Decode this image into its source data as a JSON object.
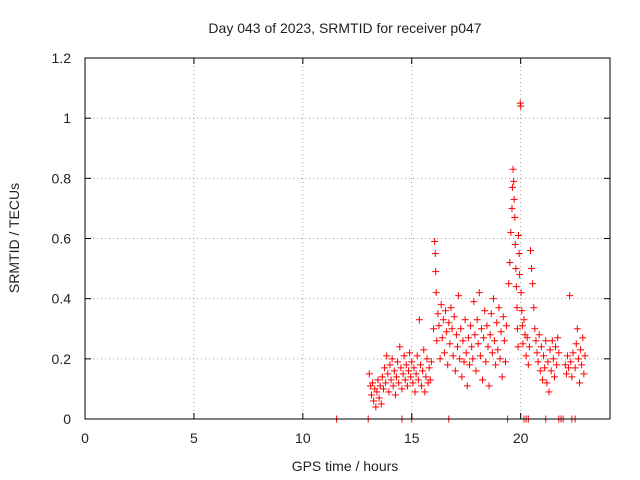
{
  "chart_data": {
    "type": "scatter",
    "title": "Day 043 of 2023, SRMTID for receiver p047",
    "xlabel": "GPS time / hours",
    "ylabel": "SRMTID / TECUs",
    "xlim": [
      0,
      24.1
    ],
    "ylim": [
      0,
      1.2
    ],
    "x_ticks": [
      0,
      5,
      10,
      15,
      20
    ],
    "x_tick_labels": [
      "0",
      "5",
      "10",
      "15",
      "20"
    ],
    "y_ticks": [
      0,
      0.2,
      0.4,
      0.6,
      0.8,
      1.0,
      1.2
    ],
    "y_tick_labels": [
      "0",
      "0.2",
      "0.4",
      "0.6",
      "0.8",
      "1",
      "1.2"
    ],
    "grid": true,
    "marker": "+",
    "color": "#ff0000",
    "series": [
      {
        "name": "SRMTID",
        "points": [
          [
            11.55,
            0.0
          ],
          [
            13.0,
            0.0
          ],
          [
            14.55,
            0.0
          ],
          [
            15.0,
            0.0
          ],
          [
            16.7,
            0.0
          ],
          [
            19.4,
            0.0
          ],
          [
            20.15,
            0.0
          ],
          [
            20.25,
            0.0
          ],
          [
            20.35,
            0.0
          ],
          [
            21.15,
            0.0
          ],
          [
            21.75,
            0.0
          ],
          [
            21.85,
            0.0
          ],
          [
            21.95,
            0.0
          ],
          [
            22.35,
            0.0
          ],
          [
            22.5,
            0.0
          ],
          [
            13.05,
            0.15
          ],
          [
            13.1,
            0.11
          ],
          [
            13.15,
            0.08
          ],
          [
            13.2,
            0.12
          ],
          [
            13.25,
            0.06
          ],
          [
            13.3,
            0.1
          ],
          [
            13.35,
            0.04
          ],
          [
            13.4,
            0.09
          ],
          [
            13.45,
            0.13
          ],
          [
            13.5,
            0.07
          ],
          [
            13.55,
            0.11
          ],
          [
            13.6,
            0.05
          ],
          [
            13.65,
            0.14
          ],
          [
            13.7,
            0.1
          ],
          [
            13.75,
            0.17
          ],
          [
            13.8,
            0.12
          ],
          [
            13.85,
            0.21
          ],
          [
            13.9,
            0.15
          ],
          [
            13.95,
            0.09
          ],
          [
            14.0,
            0.18
          ],
          [
            14.05,
            0.13
          ],
          [
            14.1,
            0.2
          ],
          [
            14.15,
            0.11
          ],
          [
            14.2,
            0.16
          ],
          [
            14.25,
            0.08
          ],
          [
            14.3,
            0.14
          ],
          [
            14.35,
            0.19
          ],
          [
            14.4,
            0.12
          ],
          [
            14.45,
            0.24
          ],
          [
            14.5,
            0.17
          ],
          [
            14.55,
            0.1
          ],
          [
            14.6,
            0.15
          ],
          [
            14.65,
            0.21
          ],
          [
            14.7,
            0.13
          ],
          [
            14.75,
            0.18
          ],
          [
            14.8,
            0.11
          ],
          [
            14.85,
            0.16
          ],
          [
            14.9,
            0.22
          ],
          [
            14.95,
            0.14
          ],
          [
            15.0,
            0.19
          ],
          [
            15.05,
            0.12
          ],
          [
            15.1,
            0.17
          ],
          [
            15.15,
            0.09
          ],
          [
            15.2,
            0.15
          ],
          [
            15.25,
            0.21
          ],
          [
            15.3,
            0.13
          ],
          [
            15.35,
            0.33
          ],
          [
            15.4,
            0.18
          ],
          [
            15.45,
            0.11
          ],
          [
            15.5,
            0.16
          ],
          [
            15.55,
            0.23
          ],
          [
            15.6,
            0.09
          ],
          [
            15.65,
            0.14
          ],
          [
            15.7,
            0.2
          ],
          [
            15.75,
            0.12
          ],
          [
            15.8,
            0.17
          ],
          [
            15.85,
            0.13
          ],
          [
            15.9,
            0.19
          ],
          [
            16.0,
            0.3
          ],
          [
            16.05,
            0.59
          ],
          [
            16.08,
            0.55
          ],
          [
            16.1,
            0.49
          ],
          [
            16.12,
            0.42
          ],
          [
            16.15,
            0.26
          ],
          [
            16.2,
            0.35
          ],
          [
            16.25,
            0.31
          ],
          [
            16.3,
            0.2
          ],
          [
            16.35,
            0.38
          ],
          [
            16.4,
            0.27
          ],
          [
            16.45,
            0.33
          ],
          [
            16.5,
            0.22
          ],
          [
            16.55,
            0.36
          ],
          [
            16.6,
            0.29
          ],
          [
            16.65,
            0.18
          ],
          [
            16.7,
            0.32
          ],
          [
            16.75,
            0.25
          ],
          [
            16.8,
            0.37
          ],
          [
            16.85,
            0.3
          ],
          [
            16.9,
            0.21
          ],
          [
            16.95,
            0.34
          ],
          [
            17.0,
            0.16
          ],
          [
            17.05,
            0.28
          ],
          [
            17.1,
            0.24
          ],
          [
            17.15,
            0.41
          ],
          [
            17.2,
            0.2
          ],
          [
            17.25,
            0.3
          ],
          [
            17.3,
            0.14
          ],
          [
            17.35,
            0.26
          ],
          [
            17.4,
            0.19
          ],
          [
            17.45,
            0.33
          ],
          [
            17.5,
            0.22
          ],
          [
            17.55,
            0.11
          ],
          [
            17.6,
            0.27
          ],
          [
            17.65,
            0.18
          ],
          [
            17.7,
            0.31
          ],
          [
            17.75,
            0.24
          ],
          [
            17.8,
            0.2
          ],
          [
            17.85,
            0.39
          ],
          [
            17.9,
            0.28
          ],
          [
            17.95,
            0.16
          ],
          [
            18.0,
            0.33
          ],
          [
            18.05,
            0.25
          ],
          [
            18.1,
            0.42
          ],
          [
            18.15,
            0.21
          ],
          [
            18.2,
            0.3
          ],
          [
            18.25,
            0.13
          ],
          [
            18.3,
            0.27
          ],
          [
            18.35,
            0.36
          ],
          [
            18.4,
            0.19
          ],
          [
            18.45,
            0.31
          ],
          [
            18.5,
            0.24
          ],
          [
            18.55,
            0.11
          ],
          [
            18.6,
            0.28
          ],
          [
            18.65,
            0.35
          ],
          [
            18.7,
            0.22
          ],
          [
            18.75,
            0.4
          ],
          [
            18.8,
            0.26
          ],
          [
            18.85,
            0.18
          ],
          [
            18.9,
            0.32
          ],
          [
            18.95,
            0.23
          ],
          [
            19.0,
            0.37
          ],
          [
            19.05,
            0.2
          ],
          [
            19.1,
            0.29
          ],
          [
            19.15,
            0.14
          ],
          [
            19.2,
            0.34
          ],
          [
            19.25,
            0.26
          ],
          [
            19.3,
            0.19
          ],
          [
            19.35,
            0.31
          ],
          [
            19.45,
            0.45
          ],
          [
            19.5,
            0.52
          ],
          [
            19.55,
            0.62
          ],
          [
            19.6,
            0.7
          ],
          [
            19.62,
            0.77
          ],
          [
            19.65,
            0.83
          ],
          [
            19.68,
            0.79
          ],
          [
            19.7,
            0.73
          ],
          [
            19.73,
            0.67
          ],
          [
            19.75,
            0.58
          ],
          [
            19.78,
            0.5
          ],
          [
            19.8,
            0.44
          ],
          [
            19.83,
            0.37
          ],
          [
            19.85,
            0.3
          ],
          [
            19.88,
            0.24
          ],
          [
            19.9,
            0.61
          ],
          [
            19.93,
            0.55
          ],
          [
            19.95,
            0.48
          ],
          [
            19.98,
            1.05
          ],
          [
            20.0,
            1.04
          ],
          [
            20.02,
            0.42
          ],
          [
            20.05,
            0.36
          ],
          [
            20.08,
            0.31
          ],
          [
            20.1,
            0.25
          ],
          [
            20.15,
            0.33
          ],
          [
            20.2,
            0.28
          ],
          [
            20.25,
            0.21
          ],
          [
            20.3,
            0.27
          ],
          [
            20.35,
            0.18
          ],
          [
            20.4,
            0.24
          ],
          [
            20.45,
            0.56
          ],
          [
            20.5,
            0.5
          ],
          [
            20.55,
            0.45
          ],
          [
            20.6,
            0.37
          ],
          [
            20.65,
            0.3
          ],
          [
            20.7,
            0.26
          ],
          [
            20.75,
            0.22
          ],
          [
            20.8,
            0.19
          ],
          [
            20.85,
            0.28
          ],
          [
            20.9,
            0.16
          ],
          [
            20.95,
            0.24
          ],
          [
            21.0,
            0.13
          ],
          [
            21.05,
            0.21
          ],
          [
            21.1,
            0.17
          ],
          [
            21.15,
            0.26
          ],
          [
            21.2,
            0.12
          ],
          [
            21.25,
            0.19
          ],
          [
            21.3,
            0.09
          ],
          [
            21.35,
            0.23
          ],
          [
            21.4,
            0.16
          ],
          [
            21.45,
            0.26
          ],
          [
            21.5,
            0.2
          ],
          [
            21.55,
            0.14
          ],
          [
            21.6,
            0.24
          ],
          [
            21.65,
            0.18
          ],
          [
            21.7,
            0.27
          ],
          [
            21.75,
            0.22
          ],
          [
            22.05,
            0.18
          ],
          [
            22.1,
            0.15
          ],
          [
            22.15,
            0.21
          ],
          [
            22.2,
            0.17
          ],
          [
            22.25,
            0.41
          ],
          [
            22.3,
            0.19
          ],
          [
            22.35,
            0.14
          ],
          [
            22.4,
            0.22
          ],
          [
            22.5,
            0.17
          ],
          [
            22.55,
            0.25
          ],
          [
            22.6,
            0.3
          ],
          [
            22.65,
            0.2
          ],
          [
            22.7,
            0.12
          ],
          [
            22.75,
            0.23
          ],
          [
            22.8,
            0.18
          ],
          [
            22.85,
            0.27
          ],
          [
            22.9,
            0.15
          ],
          [
            22.95,
            0.21
          ]
        ]
      }
    ]
  }
}
